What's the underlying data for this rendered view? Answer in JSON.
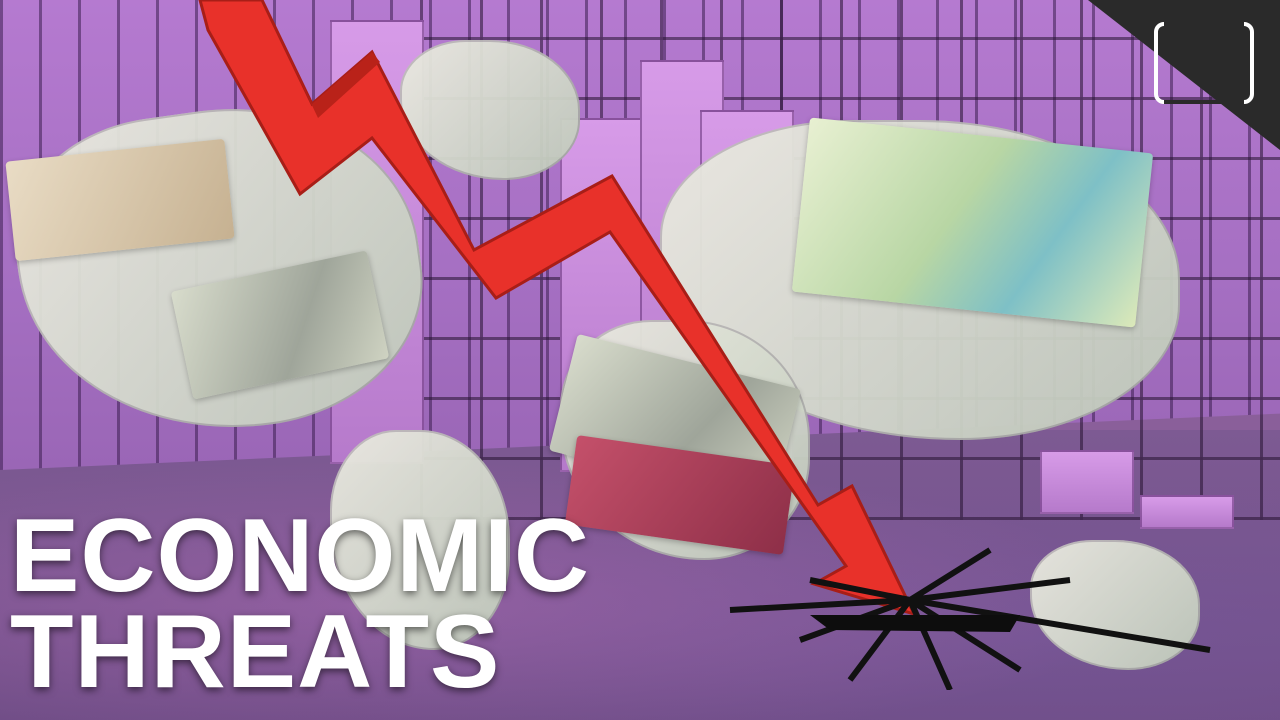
{
  "thumbnail": {
    "headline_line1": "ECONOMIC",
    "headline_line2": "THREATS",
    "headline_color": "#ffffff",
    "arrow_color": "#e8312a",
    "background_color": "#9a66b6",
    "logo_icon": "rounded-square-logo-icon"
  }
}
